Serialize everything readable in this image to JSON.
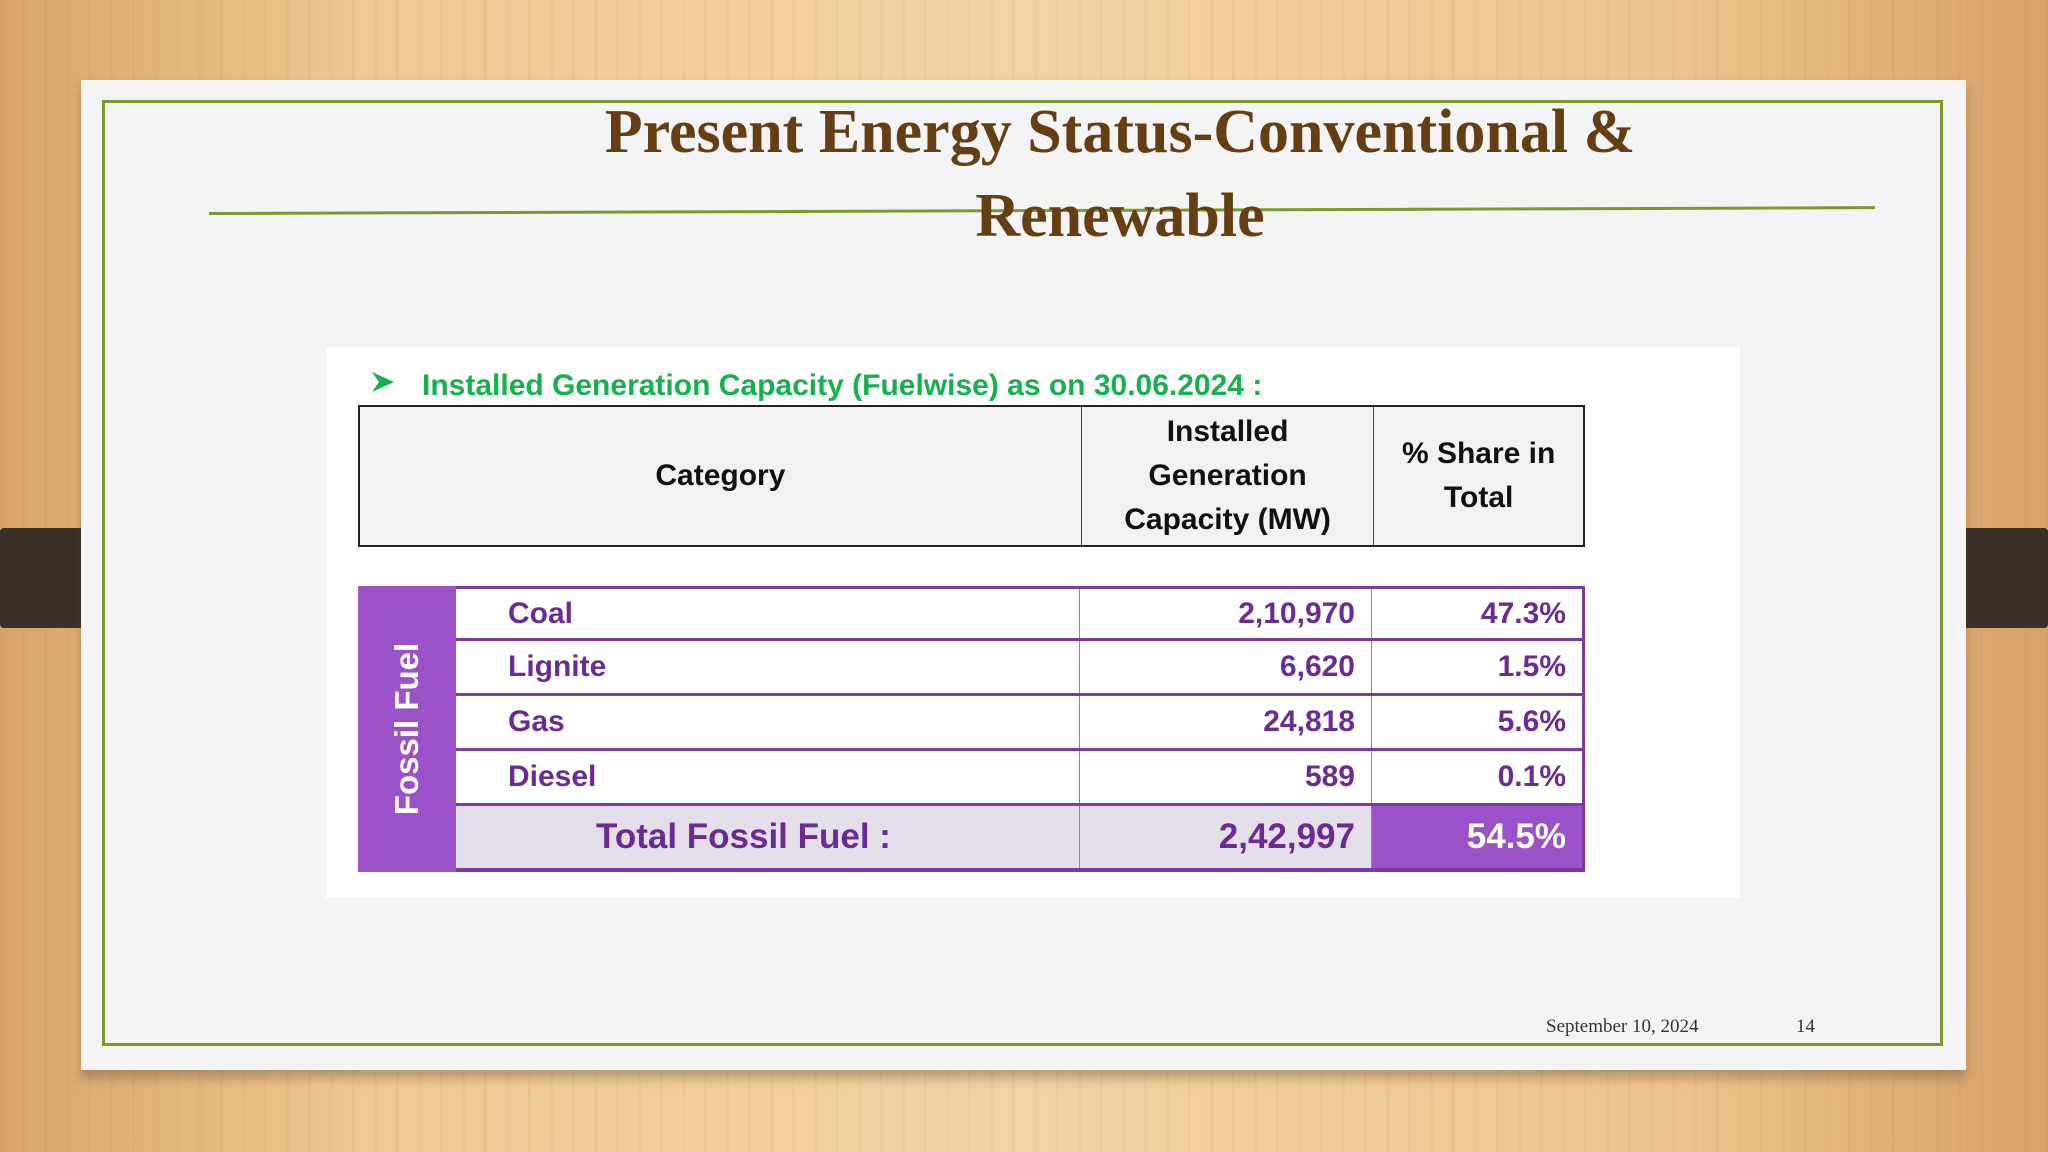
{
  "slide": {
    "title_line1": "Present Energy Status-Conventional &",
    "title_line2": "Renewable",
    "subtitle": "Installed Generation Capacity (Fuelwise) as on 30.06.2024 :",
    "footer_date": "September 10, 2024",
    "page_number": "14"
  },
  "table": {
    "headers": {
      "category": "Category",
      "capacity_l1": "Installed",
      "capacity_l2": "Generation",
      "capacity_l3": "Capacity (MW)",
      "share_l1": "% Share in",
      "share_l2": "Total"
    },
    "group_label": "Fossil Fuel",
    "rows": [
      {
        "category": "Coal",
        "capacity": "2,10,970",
        "share": "47.3%"
      },
      {
        "category": "Lignite",
        "capacity": "6,620",
        "share": "1.5%"
      },
      {
        "category": "Gas",
        "capacity": "24,818",
        "share": "5.6%"
      },
      {
        "category": "Diesel",
        "capacity": "589",
        "share": "0.1%"
      }
    ],
    "total": {
      "label": "Total Fossil Fuel :",
      "capacity": "2,42,997",
      "share": "54.5%"
    }
  },
  "colors": {
    "title": "#653e14",
    "accent_green": "#7b9a2c",
    "subtitle_green": "#14b14d",
    "purple": "#9b52c8",
    "purple_text": "#6a2b95"
  },
  "icons": {
    "bullet": "arrowhead-bullet-icon"
  }
}
